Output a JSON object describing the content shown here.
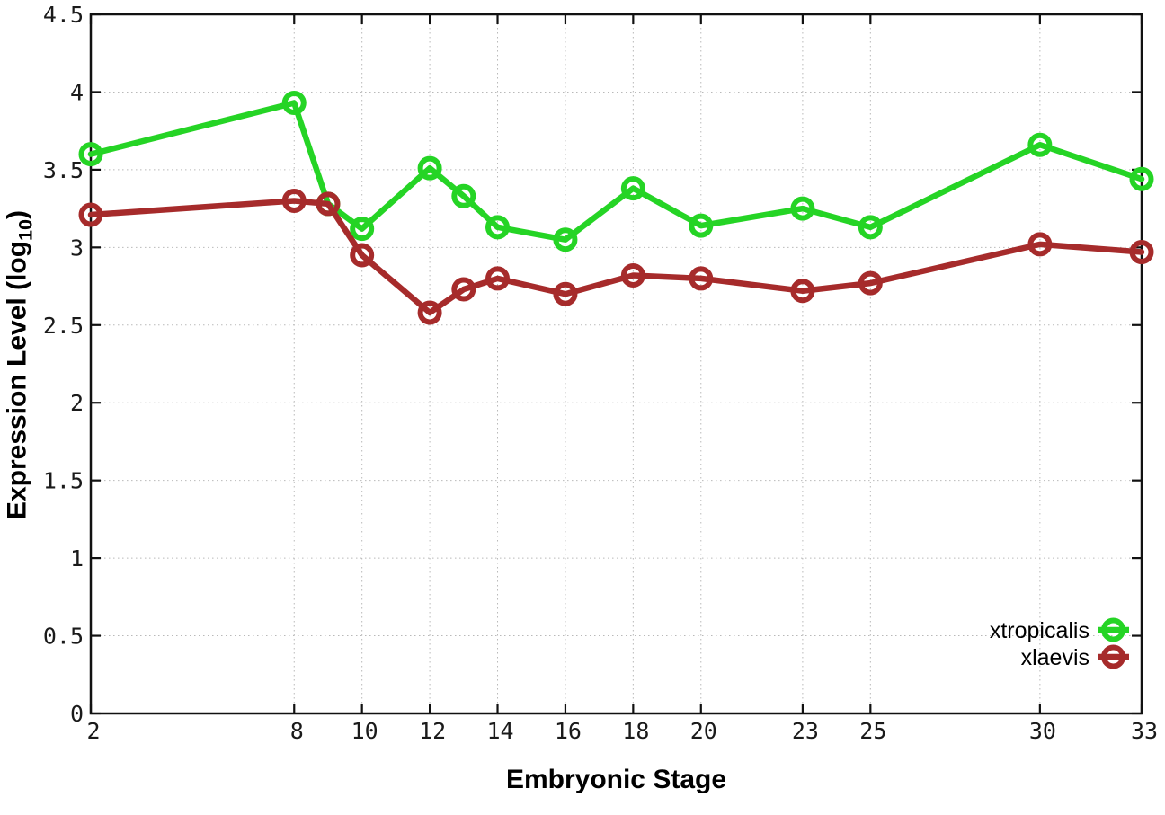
{
  "chart_data": {
    "type": "line",
    "title": "",
    "xlabel": "Embryonic Stage",
    "ylabel": {
      "prefix": "Expression Level (log",
      "sub": "10",
      "suffix": ")"
    },
    "xlim": [
      2,
      33
    ],
    "ylim": [
      0,
      4.5
    ],
    "grid": true,
    "marker_style": "open-circle",
    "x_ticks": [
      2,
      8,
      10,
      12,
      14,
      16,
      18,
      20,
      23,
      25,
      30,
      33
    ],
    "y_ticks": {
      "values": [
        0,
        0.5,
        1,
        1.5,
        2,
        2.5,
        3,
        3.5,
        4,
        4.5
      ],
      "labels": [
        "0",
        "0.5",
        "1",
        "1.5",
        "2",
        "2.5",
        "3",
        "3.5",
        "4",
        "4.5"
      ]
    },
    "x": [
      2,
      8,
      9,
      10,
      12,
      13,
      14,
      16,
      18,
      20,
      23,
      25,
      30,
      33
    ],
    "series": [
      {
        "name": "xtropicalis",
        "color": "#25d425",
        "values": [
          3.6,
          3.93,
          3.28,
          3.12,
          3.51,
          3.33,
          3.13,
          3.05,
          3.38,
          3.14,
          3.25,
          3.13,
          3.66,
          3.44
        ]
      },
      {
        "name": "xlaevis",
        "color": "#a62b2b",
        "values": [
          3.21,
          3.3,
          3.28,
          2.95,
          2.58,
          2.73,
          2.8,
          2.7,
          2.82,
          2.8,
          2.72,
          2.77,
          3.02,
          2.97
        ]
      }
    ],
    "legend": {
      "position": "bottom-right-inside",
      "entries": [
        "xtropicalis",
        "xlaevis"
      ]
    },
    "colors": {
      "grid": "#b9b9b9",
      "border": "#111111",
      "tick_text": "#1a1a1a",
      "background": "#ffffff"
    }
  }
}
